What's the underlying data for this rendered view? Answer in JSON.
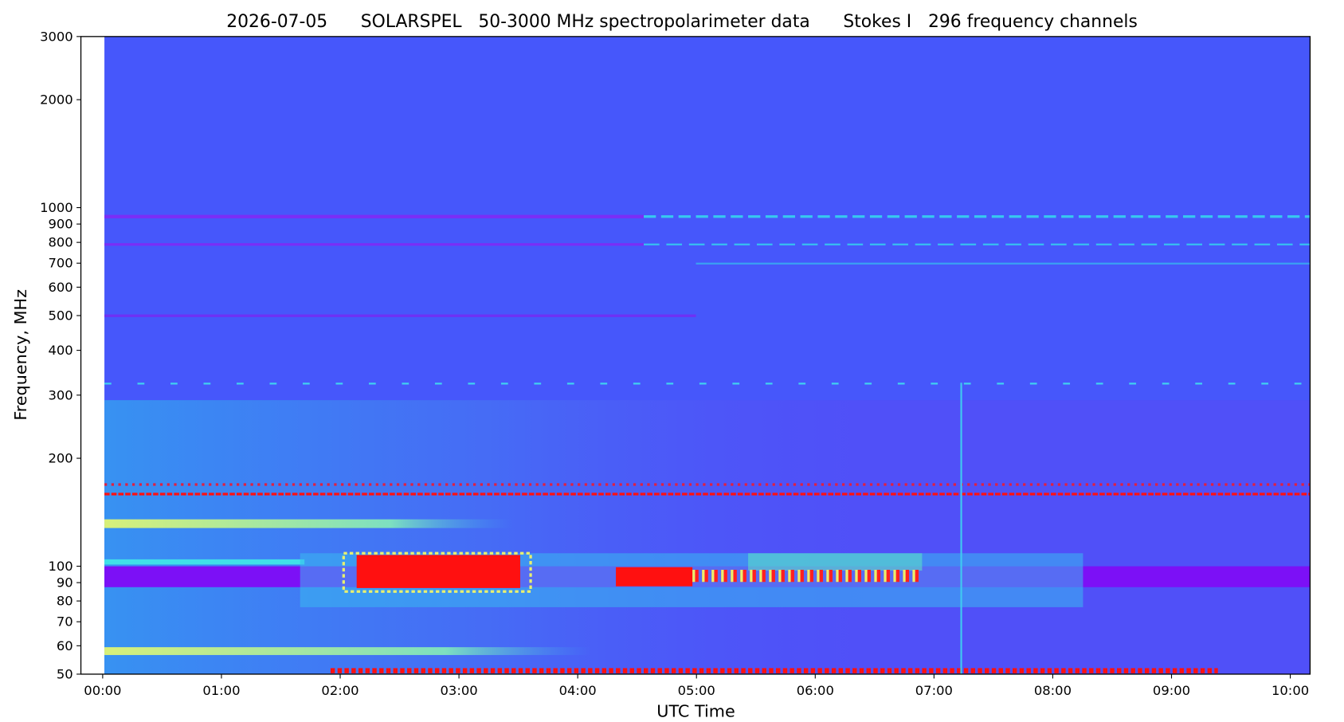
{
  "chart_data": {
    "type": "heatmap",
    "title": "2026-07-05      SOLARSPEL   50-3000 MHz spectropolarimeter data      Stokes I   296 frequency channels",
    "x_label": "UTC Time",
    "y_label": "Frequency, MHz",
    "xlim": [
      -11,
      610
    ],
    "xticks": [
      {
        "value": 0,
        "label": "00:00"
      },
      {
        "value": 60,
        "label": "01:00"
      },
      {
        "value": 120,
        "label": "02:00"
      },
      {
        "value": 180,
        "label": "03:00"
      },
      {
        "value": 240,
        "label": "04:00"
      },
      {
        "value": 300,
        "label": "05:00"
      },
      {
        "value": 360,
        "label": "06:00"
      },
      {
        "value": 420,
        "label": "07:00"
      },
      {
        "value": 480,
        "label": "08:00"
      },
      {
        "value": 540,
        "label": "09:00"
      },
      {
        "value": 600,
        "label": "10:00"
      }
    ],
    "ylim": [
      50,
      3000
    ],
    "yticks": [
      50,
      60,
      70,
      80,
      90,
      100,
      200,
      300,
      400,
      500,
      600,
      700,
      800,
      900,
      1000,
      2000,
      3000
    ],
    "y_scale": "log"
  }
}
